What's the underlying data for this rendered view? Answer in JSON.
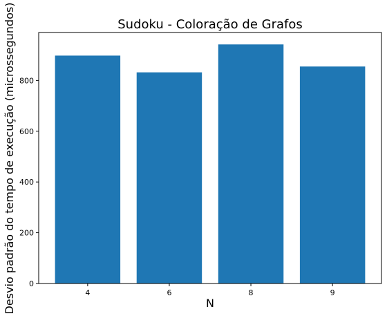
{
  "chart_data": {
    "type": "bar",
    "title": "Sudoku - Coloração de Grafos",
    "xlabel": "N",
    "ylabel": "Desvio padrão do tempo de execução (microssegundos)",
    "categories": [
      "4",
      "6",
      "8",
      "9"
    ],
    "values": [
      898,
      832,
      942,
      855
    ],
    "ylim": [
      0,
      989
    ],
    "yticks": [
      0,
      200,
      400,
      600,
      800
    ],
    "bar_color": "#1f77b4",
    "grid": false,
    "legend": "none"
  }
}
